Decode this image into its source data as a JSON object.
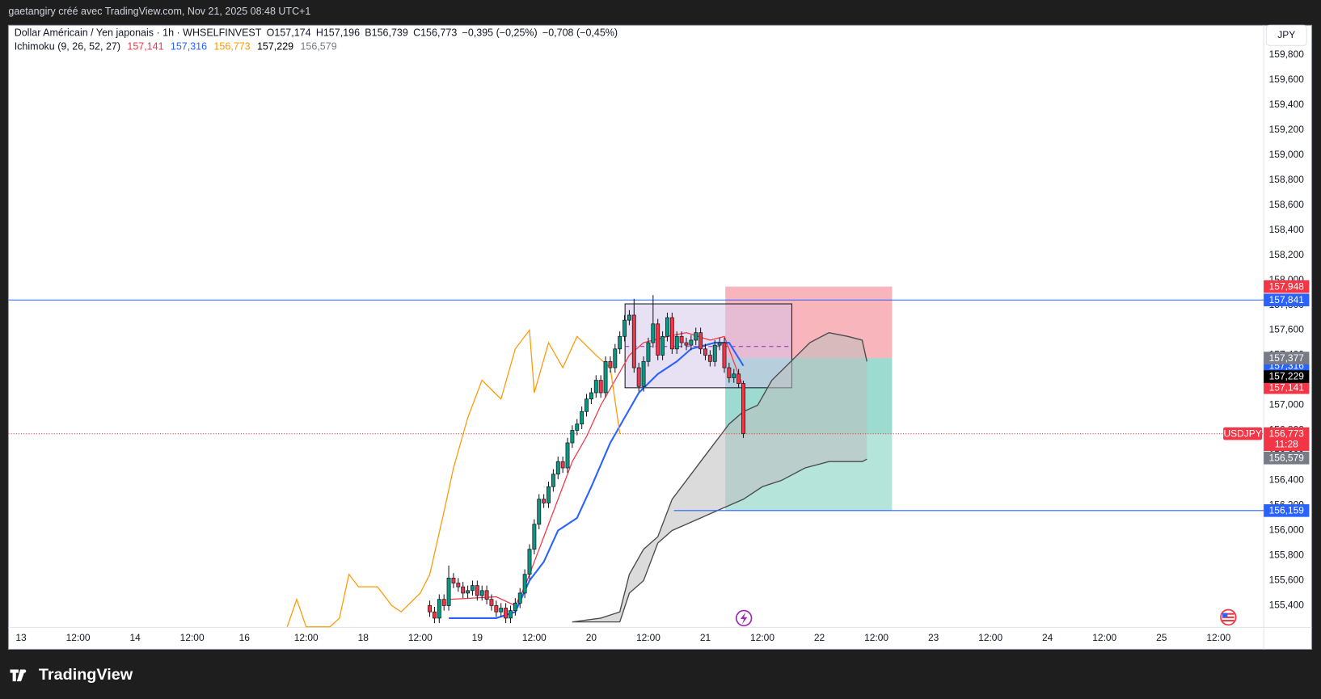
{
  "header": {
    "text": "gaetangiry créé avec TradingView.com, Nov 21, 2025 08:48 UTC+1"
  },
  "footer": {
    "brand": "TradingView"
  },
  "chart_data": {
    "type": "candlestick",
    "title": "Dollar Américain / Yen japonais · 1h · WHSELFINVEST",
    "ohlc": [
      {
        "key": "O",
        "value": 157.174,
        "label": "157,174"
      },
      {
        "key": "H",
        "value": 157.196,
        "label": "157,196"
      },
      {
        "key": "B",
        "value": 156.739,
        "label": "156,739"
      },
      {
        "key": "C",
        "value": 156.773,
        "label": "156,773"
      }
    ],
    "changes": [
      "−0,395 (−0,25%)",
      "−0,708 (−0,45%)"
    ],
    "currency": "JPY",
    "symbol_tag": "USDJPY",
    "countdown": "11:28",
    "last_price_color": "#f23645",
    "up_color": "#089981",
    "down_color": "#f23645",
    "grid": false,
    "xlim": [
      -2.66,
      261.5
    ],
    "ylim": [
      155.226,
      160.035
    ],
    "xticks": [
      {
        "value": 0,
        "label": "13"
      },
      {
        "value": 12,
        "label": "12:00"
      },
      {
        "value": 24,
        "label": "14"
      },
      {
        "value": 36,
        "label": "12:00"
      },
      {
        "value": 47,
        "label": "16"
      },
      {
        "value": 60,
        "label": "12:00"
      },
      {
        "value": 72,
        "label": "18"
      },
      {
        "value": 84,
        "label": "12:00"
      },
      {
        "value": 96,
        "label": "19"
      },
      {
        "value": 108,
        "label": "12:00"
      },
      {
        "value": 120,
        "label": "20"
      },
      {
        "value": 132,
        "label": "12:00"
      },
      {
        "value": 144,
        "label": "21"
      },
      {
        "value": 156,
        "label": "12:00"
      },
      {
        "value": 168,
        "label": "22"
      },
      {
        "value": 180,
        "label": "12:00"
      },
      {
        "value": 192,
        "label": "23"
      },
      {
        "value": 204,
        "label": "12:00"
      },
      {
        "value": 216,
        "label": "24"
      },
      {
        "value": 228,
        "label": "12:00"
      },
      {
        "value": 240,
        "label": "25"
      },
      {
        "value": 252,
        "label": "12:00"
      }
    ],
    "yticks": [
      {
        "value": 155.4,
        "label": "155,400"
      },
      {
        "value": 155.6,
        "label": "155,600"
      },
      {
        "value": 155.8,
        "label": "155,800"
      },
      {
        "value": 156.0,
        "label": "156,000"
      },
      {
        "value": 156.2,
        "label": "156,200"
      },
      {
        "value": 156.4,
        "label": "156,400"
      },
      {
        "value": 156.6,
        "label": "156,600"
      },
      {
        "value": 156.8,
        "label": "156,800"
      },
      {
        "value": 157.0,
        "label": "157,000"
      },
      {
        "value": 157.2,
        "label": "157,200"
      },
      {
        "value": 157.4,
        "label": "157,400"
      },
      {
        "value": 157.6,
        "label": "157,600"
      },
      {
        "value": 157.8,
        "label": "157,800"
      },
      {
        "value": 158.0,
        "label": "158,000"
      },
      {
        "value": 158.2,
        "label": "158,200"
      },
      {
        "value": 158.4,
        "label": "158,400"
      },
      {
        "value": 158.6,
        "label": "158,600"
      },
      {
        "value": 158.8,
        "label": "158,800"
      },
      {
        "value": 159.0,
        "label": "159,000"
      },
      {
        "value": 159.2,
        "label": "159,200"
      },
      {
        "value": 159.4,
        "label": "159,400"
      },
      {
        "value": 159.6,
        "label": "159,600"
      },
      {
        "value": 159.8,
        "label": "159,800"
      }
    ],
    "candles": {
      "x": [
        86,
        87,
        88,
        89,
        90,
        91,
        92,
        93,
        94,
        95,
        96,
        97,
        98,
        99,
        100,
        101,
        102,
        103,
        104,
        105,
        106,
        107,
        108,
        109,
        110,
        111,
        112,
        113,
        114,
        115,
        116,
        117,
        118,
        119,
        120,
        121,
        122,
        123,
        124,
        125,
        126,
        127,
        128,
        129,
        130,
        131,
        132,
        133,
        134,
        135,
        136,
        137,
        138,
        139,
        140,
        141,
        142,
        143,
        144,
        145,
        146,
        147,
        148,
        149,
        150,
        151,
        152
      ],
      "open": [
        155.4,
        155.35,
        155.3,
        155.45,
        155.4,
        155.62,
        155.58,
        155.55,
        155.5,
        155.52,
        155.56,
        155.48,
        155.52,
        155.45,
        155.4,
        155.35,
        155.38,
        155.3,
        155.36,
        155.42,
        155.5,
        155.65,
        155.85,
        156.05,
        156.25,
        156.22,
        156.35,
        156.45,
        156.55,
        156.5,
        156.7,
        156.8,
        156.85,
        156.95,
        157.05,
        157.1,
        157.2,
        157.1,
        157.35,
        157.3,
        157.45,
        157.55,
        157.68,
        157.72,
        157.3,
        157.15,
        157.35,
        157.5,
        157.65,
        157.4,
        157.55,
        157.7,
        157.45,
        157.55,
        157.5,
        157.48,
        157.52,
        157.58,
        157.45,
        157.4,
        157.35,
        157.48,
        157.5,
        157.3,
        157.22,
        157.25,
        157.174
      ],
      "high": [
        155.44,
        155.39,
        155.49,
        155.49,
        155.72,
        155.66,
        155.62,
        155.59,
        155.56,
        155.6,
        155.6,
        155.56,
        155.56,
        155.49,
        155.44,
        155.42,
        155.42,
        155.4,
        155.46,
        155.54,
        155.69,
        155.89,
        156.09,
        156.29,
        156.29,
        156.39,
        156.49,
        156.59,
        156.59,
        156.74,
        156.84,
        156.89,
        156.99,
        157.09,
        157.14,
        157.24,
        157.24,
        157.39,
        157.39,
        157.49,
        157.59,
        157.72,
        157.76,
        157.85,
        157.34,
        157.39,
        157.54,
        157.88,
        157.69,
        157.59,
        157.74,
        157.74,
        157.59,
        157.59,
        157.54,
        157.56,
        157.62,
        157.62,
        157.49,
        157.44,
        157.52,
        157.54,
        157.54,
        157.34,
        157.29,
        157.29,
        157.196
      ],
      "low": [
        155.31,
        155.26,
        155.26,
        155.36,
        155.36,
        155.54,
        155.51,
        155.46,
        155.46,
        155.48,
        155.44,
        155.44,
        155.41,
        155.36,
        155.31,
        155.31,
        155.26,
        155.26,
        155.32,
        155.38,
        155.46,
        155.61,
        155.81,
        156.01,
        156.18,
        156.18,
        156.31,
        156.41,
        156.46,
        156.46,
        156.66,
        156.76,
        156.81,
        156.91,
        157.01,
        157.06,
        157.06,
        157.06,
        157.26,
        157.26,
        157.41,
        157.51,
        157.64,
        157.26,
        157.11,
        157.11,
        157.31,
        157.46,
        157.36,
        157.36,
        157.51,
        157.41,
        157.41,
        157.46,
        157.44,
        157.44,
        157.48,
        157.41,
        157.36,
        157.31,
        157.31,
        157.44,
        157.26,
        157.18,
        157.18,
        157.14,
        156.739
      ],
      "close": [
        155.35,
        155.3,
        155.45,
        155.4,
        155.62,
        155.58,
        155.55,
        155.5,
        155.52,
        155.56,
        155.48,
        155.52,
        155.45,
        155.4,
        155.35,
        155.38,
        155.3,
        155.36,
        155.42,
        155.5,
        155.65,
        155.85,
        156.05,
        156.25,
        156.22,
        156.35,
        156.45,
        156.55,
        156.5,
        156.7,
        156.8,
        156.85,
        156.95,
        157.05,
        157.1,
        157.2,
        157.1,
        157.35,
        157.3,
        157.45,
        157.55,
        157.68,
        157.72,
        157.3,
        157.15,
        157.35,
        157.5,
        157.65,
        157.4,
        157.55,
        157.7,
        157.45,
        157.55,
        157.5,
        157.48,
        157.52,
        157.58,
        157.45,
        157.4,
        157.35,
        157.48,
        157.5,
        157.3,
        157.22,
        157.25,
        157.174,
        156.773
      ]
    },
    "ichimoku": {
      "label": "Ichimoku (9, 26, 52, 27)",
      "values": [
        {
          "value": 157.141,
          "label": "157,141",
          "color": "#f23645"
        },
        {
          "value": 157.316,
          "label": "157,316",
          "color": "#2962ff"
        },
        {
          "value": 156.773,
          "label": "156,773",
          "color": "#ff9800"
        },
        {
          "value": 157.229,
          "label": "157,229",
          "color": "#000000"
        },
        {
          "value": 156.579,
          "label": "156,579",
          "color": "#787b86"
        }
      ]
    },
    "lines": [
      {
        "color": "#f23645",
        "x": [
          90,
          100,
          104,
          106,
          108,
          110,
          113,
          116,
          119,
          122,
          125,
          128,
          131,
          136,
          140,
          145,
          148,
          152
        ],
        "values": [
          155.45,
          155.47,
          155.4,
          155.55,
          155.75,
          155.95,
          156.25,
          156.55,
          156.75,
          157.0,
          157.2,
          157.4,
          157.5,
          157.55,
          157.58,
          157.52,
          157.55,
          157.141
        ]
      },
      {
        "color": "#2962ff",
        "x": [
          90,
          100,
          104,
          107,
          110,
          113,
          117,
          120,
          124,
          127,
          130,
          134,
          138,
          141,
          146,
          149,
          152
        ],
        "values": [
          155.3,
          155.3,
          155.35,
          155.6,
          155.75,
          156.0,
          156.1,
          156.35,
          156.7,
          156.9,
          157.1,
          157.25,
          157.35,
          157.45,
          157.5,
          157.5,
          157.316
        ]
      },
      {
        "color": "#ff9800",
        "x": [
          56,
          58,
          60,
          65,
          67,
          69,
          71,
          75,
          78,
          80,
          84,
          86,
          89,
          91,
          94,
          97,
          101,
          104,
          107,
          108,
          111,
          114,
          117,
          121,
          124,
          126
        ],
        "values": [
          155.23,
          155.45,
          155.23,
          155.23,
          155.3,
          155.65,
          155.55,
          155.55,
          155.4,
          155.35,
          155.5,
          155.65,
          156.15,
          156.5,
          156.9,
          157.2,
          157.05,
          157.45,
          157.6,
          157.1,
          157.5,
          157.3,
          157.55,
          157.4,
          157.3,
          156.773
        ]
      }
    ],
    "cloud": {
      "color": "#bdbdbd",
      "line_color": "#4a4a4a",
      "span_a": {
        "x": [
          116,
          122,
          126,
          128,
          131,
          134,
          137,
          140,
          143,
          146,
          149,
          152,
          155,
          158,
          162,
          166,
          170,
          174,
          177,
          178
        ],
        "values": [
          155.27,
          155.3,
          155.35,
          155.65,
          155.85,
          155.95,
          156.25,
          156.4,
          156.55,
          156.7,
          156.85,
          156.95,
          157.0,
          157.2,
          157.35,
          157.5,
          157.58,
          157.55,
          157.52,
          157.35
        ]
      },
      "span_b": {
        "x": [
          116,
          126,
          128,
          131,
          134,
          137,
          140,
          143,
          146,
          149,
          152,
          156,
          160,
          165,
          170,
          177,
          178
        ],
        "values": [
          155.27,
          155.27,
          155.5,
          155.6,
          155.9,
          156.0,
          156.05,
          156.1,
          156.15,
          156.2,
          156.25,
          156.35,
          156.4,
          156.5,
          156.55,
          156.55,
          156.57
        ]
      }
    },
    "hlines": [
      {
        "value": 157.841,
        "label": "157,841",
        "color": "#2962ff",
        "x_start": -2.66
      },
      {
        "value": 156.159,
        "color": "#2962ff",
        "x_start": 137.4
      }
    ],
    "position": {
      "x": [
        148.2,
        183.3
      ],
      "stop": {
        "value": 157.948,
        "label": "157,948",
        "color": "#f23645"
      },
      "entry": {
        "value": 157.377,
        "label": "157,377",
        "color": "#787b86"
      },
      "target": {
        "value": 156.159,
        "label": "156,159",
        "color": "#2962ff"
      },
      "stop_zone_color": "#f7a8b0",
      "target_zone_color": "#8dd5c8"
    },
    "range_box": {
      "x": [
        127.1,
        162.2
      ],
      "top": 157.81,
      "bottom": 157.14,
      "mid": 157.47,
      "color": "#d1c4e9"
    }
  }
}
